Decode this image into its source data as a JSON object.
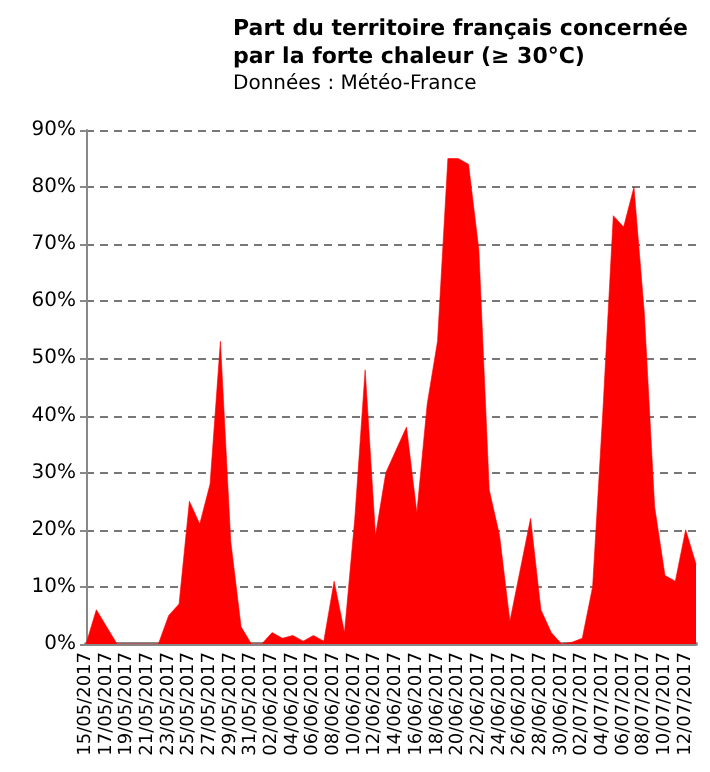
{
  "chart_data": {
    "type": "area",
    "title": "Part du territoire français concernée\npar la forte chaleur (≥ 30°C)",
    "subtitle": "Données : Météo-France",
    "categories": [
      "15/05/2017",
      null,
      "17/05/2017",
      null,
      "19/05/2017",
      null,
      "21/05/2017",
      null,
      "23/05/2017",
      null,
      "25/05/2017",
      null,
      "27/05/2017",
      null,
      "29/05/2017",
      null,
      "31/05/2017",
      null,
      "02/06/2017",
      null,
      "04/06/2017",
      null,
      "06/06/2017",
      null,
      "08/06/2017",
      null,
      "10/06/2017",
      null,
      "12/06/2017",
      null,
      "14/06/2017",
      null,
      "16/06/2017",
      null,
      "18/06/2017",
      null,
      "20/06/2017",
      null,
      "22/06/2017",
      null,
      "24/06/2017",
      null,
      "26/06/2017",
      null,
      "28/06/2017",
      null,
      "30/06/2017",
      null,
      "02/07/2017",
      null,
      "04/07/2017",
      null,
      "06/07/2017",
      null,
      "08/07/2017",
      null,
      "10/07/2017",
      null,
      "12/07/2017",
      null
    ],
    "series": [
      {
        "color": "#ff0000",
        "values": [
          0,
          6,
          3,
          0,
          0,
          0,
          0,
          0,
          5,
          7,
          25,
          21,
          28,
          53,
          18,
          3,
          0,
          0,
          2,
          1,
          1.5,
          0.5,
          1.5,
          0.5,
          11,
          2,
          22,
          48,
          19,
          30,
          34,
          38,
          23,
          42,
          53,
          85,
          85,
          84,
          69,
          27,
          19,
          4,
          13,
          22,
          6,
          2,
          0,
          0.3,
          1,
          10,
          41,
          75,
          73,
          80,
          58,
          24,
          12,
          11,
          20,
          14
        ]
      }
    ],
    "ylim": [
      0,
      90
    ],
    "yticks": [
      {
        "value": 0,
        "label": "0%"
      },
      {
        "value": 10,
        "label": "10%"
      },
      {
        "value": 20,
        "label": "20%"
      },
      {
        "value": 30,
        "label": "30%"
      },
      {
        "value": 40,
        "label": "40%"
      },
      {
        "value": 50,
        "label": "50%"
      },
      {
        "value": 60,
        "label": "60%"
      },
      {
        "value": 70,
        "label": "70%"
      },
      {
        "value": 80,
        "label": "80%"
      },
      {
        "value": 90,
        "label": "90%"
      }
    ],
    "grid": "y",
    "marker": "none",
    "line_style": "solid"
  }
}
